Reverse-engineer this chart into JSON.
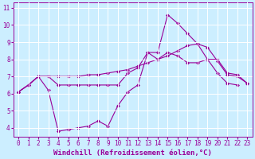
{
  "xlabel": "Windchill (Refroidissement éolien,°C)",
  "background_color": "#cceeff",
  "line_color": "#990099",
  "grid_color": "#ffffff",
  "xlim": [
    -0.5,
    23.5
  ],
  "ylim": [
    3.5,
    11.3
  ],
  "xticks": [
    0,
    1,
    2,
    3,
    4,
    5,
    6,
    7,
    8,
    9,
    10,
    11,
    12,
    13,
    14,
    15,
    16,
    17,
    18,
    19,
    20,
    21,
    22,
    23
  ],
  "yticks": [
    4,
    5,
    6,
    7,
    8,
    9,
    10,
    11
  ],
  "line1_x": [
    0,
    1,
    2,
    3,
    4,
    5,
    6,
    7,
    8,
    9,
    10,
    11,
    12,
    13,
    14,
    15,
    16,
    17,
    18,
    19,
    20,
    21,
    22
  ],
  "line1_y": [
    6.1,
    6.5,
    7.0,
    6.2,
    3.8,
    3.9,
    4.0,
    4.1,
    4.4,
    4.1,
    5.3,
    6.1,
    6.5,
    8.4,
    8.4,
    10.6,
    10.1,
    9.5,
    8.9,
    8.0,
    7.2,
    6.6,
    6.5
  ],
  "line2_x": [
    0,
    1,
    2,
    3,
    4,
    5,
    6,
    7,
    8,
    9,
    10,
    11,
    12,
    13,
    14,
    15,
    16,
    17,
    18,
    19,
    20,
    21,
    22,
    23
  ],
  "line2_y": [
    6.1,
    6.5,
    7.0,
    7.0,
    6.5,
    6.5,
    6.5,
    6.5,
    6.5,
    6.5,
    6.5,
    7.2,
    7.5,
    8.4,
    8.0,
    8.4,
    8.2,
    7.8,
    7.8,
    8.0,
    8.0,
    7.2,
    7.1,
    6.6
  ],
  "line3_x": [
    0,
    1,
    2,
    3,
    4,
    5,
    6,
    7,
    8,
    9,
    10,
    11,
    12,
    13,
    14,
    15,
    16,
    17,
    18,
    19,
    20,
    21,
    22,
    23
  ],
  "line3_y": [
    6.1,
    6.5,
    7.0,
    7.0,
    7.0,
    7.0,
    7.0,
    7.1,
    7.1,
    7.2,
    7.3,
    7.4,
    7.6,
    7.8,
    8.0,
    8.2,
    8.5,
    8.8,
    8.9,
    8.7,
    7.9,
    7.1,
    7.0,
    6.6
  ],
  "marker_size": 2.5,
  "line_width": 0.8,
  "tick_fontsize": 5.5,
  "xlabel_fontsize": 6.5,
  "fig_width": 3.2,
  "fig_height": 2.0,
  "dpi": 100
}
